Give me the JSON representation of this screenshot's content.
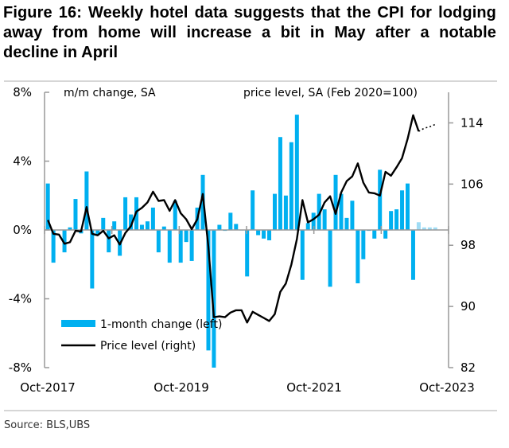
{
  "figure": {
    "title": "Figure 16: Weekly hotel data suggests that the CPI for lodging away from home will increase a bit in May after a notable decline in April",
    "source": "Source: BLS,UBS"
  },
  "chart_data": {
    "type": "bar+line",
    "title": "Figure 16: Weekly hotel data suggests that the CPI for lodging away from home will increase a bit in May after a notable decline in April",
    "left_axis": {
      "label": "m/m change, SA",
      "range": [
        -8,
        8
      ],
      "ticks": [
        "8%",
        "4%",
        "0%",
        "-4%",
        "-8%"
      ],
      "tick_values": [
        8,
        4,
        0,
        -4,
        -8
      ]
    },
    "right_axis": {
      "label": "price level, SA (Feb 2020=100)",
      "range": [
        82,
        118
      ],
      "ticks": [
        "114",
        "106",
        "98",
        "90",
        "82"
      ],
      "tick_values": [
        114,
        106,
        98,
        90,
        82
      ]
    },
    "x_axis": {
      "ticks": [
        "Oct-2017",
        "Oct-2019",
        "Oct-2021",
        "Oct-2023"
      ],
      "start": "Oct-2017",
      "end": "Oct-2023"
    },
    "legend": {
      "placement": "bottom-left",
      "entries": [
        {
          "name": "1-month change (left)",
          "kind": "bar",
          "color": "#00b0f0"
        },
        {
          "name": "Price level (right)",
          "kind": "line",
          "color": "#000000"
        }
      ]
    },
    "colors": {
      "bar": "#00b0f0",
      "line": "#000000",
      "axis": "#999999"
    },
    "series": [
      {
        "name": "1-month change (left)",
        "type": "bar",
        "start_month_index": 0,
        "values": [
          2.7,
          -1.9,
          0.0,
          -1.3,
          0.15,
          1.8,
          -0.2,
          3.4,
          -3.4,
          -0.3,
          0.7,
          -1.3,
          0.5,
          -1.5,
          1.9,
          0.9,
          1.9,
          0.3,
          0.5,
          1.3,
          -1.3,
          0.2,
          -1.9,
          1.7,
          -1.9,
          -0.7,
          -1.8,
          1.3,
          3.2,
          -7.0,
          -8.0,
          0.3,
          -0.05,
          1.0,
          0.35,
          0.0,
          -2.7,
          2.3,
          -0.3,
          -0.5,
          -0.6,
          2.1,
          5.4,
          2.0,
          5.1,
          6.7,
          -2.9,
          0.4,
          1.0,
          2.1,
          1.2,
          -3.3,
          3.2,
          2.1,
          0.7,
          1.7,
          -3.1,
          -1.7,
          -0.05,
          -0.5,
          3.5,
          -0.5,
          1.1,
          1.2,
          2.3,
          2.7,
          -2.9
        ]
      },
      {
        "name": "1-month change forecast (left)",
        "type": "bar-hatched",
        "start_month_index": 67,
        "values": [
          0.45,
          0.15,
          0.15,
          0.15
        ]
      },
      {
        "name": "Price level (right)",
        "type": "line",
        "start_month_index": 0,
        "values": [
          101.3,
          99.5,
          99.4,
          98.2,
          98.4,
          99.9,
          99.8,
          103.0,
          99.5,
          99.3,
          99.9,
          98.9,
          99.3,
          98.1,
          99.6,
          100.5,
          102.4,
          102.9,
          103.6,
          105.0,
          103.8,
          103.9,
          102.5,
          103.9,
          102.2,
          101.4,
          100.1,
          101.4,
          104.7,
          97.8,
          88.6,
          88.7,
          88.6,
          89.2,
          89.5,
          89.5,
          87.9,
          89.3,
          88.9,
          88.5,
          88.1,
          89.0,
          91.9,
          93.0,
          95.5,
          98.8,
          103.9,
          101.0,
          101.4,
          102.0,
          103.6,
          104.4,
          102.1,
          104.9,
          106.4,
          107.0,
          108.7,
          106.2,
          104.9,
          104.8,
          104.5,
          107.6,
          107.1,
          108.2,
          109.4,
          111.9,
          115.0,
          112.9
        ]
      },
      {
        "name": "Price level forecast (right)",
        "type": "line-dotted",
        "start_month_index": 67,
        "values": [
          112.9,
          113.3,
          113.5,
          113.8
        ]
      }
    ]
  }
}
